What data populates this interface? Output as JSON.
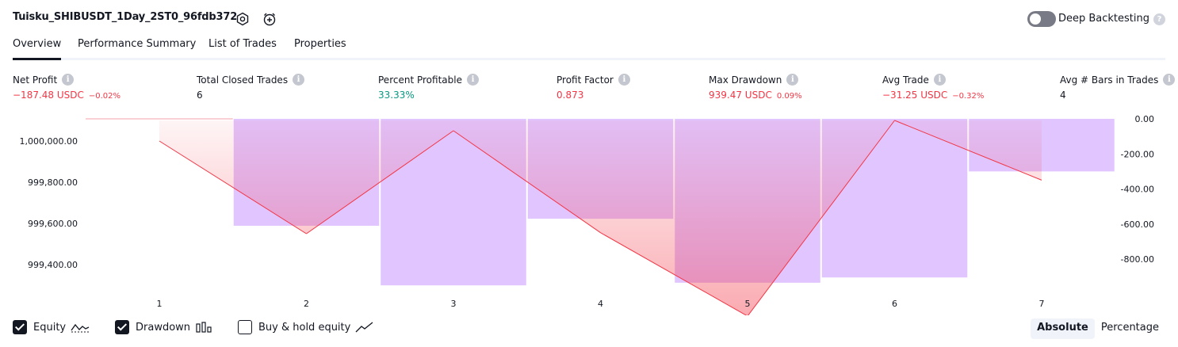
{
  "header": {
    "strategy_title": "Tuisku_SHIBUSDT_1Day_2ST0_96fdb372",
    "deep_backtesting_label": "Deep Backtesting",
    "deep_backtesting_enabled": false,
    "icons": [
      "settings-icon",
      "add-alert-icon",
      "help-icon"
    ]
  },
  "tabs": [
    {
      "label": "Overview",
      "active": true
    },
    {
      "label": "Performance Summary",
      "active": false
    },
    {
      "label": "List of Trades",
      "active": false
    },
    {
      "label": "Properties",
      "active": false
    }
  ],
  "metrics": [
    {
      "label": "Net Profit",
      "value": "−187.48 USDC",
      "pct": "−0.02%",
      "color": "red"
    },
    {
      "label": "Total Closed Trades",
      "value": "6",
      "pct": "",
      "color": "dark"
    },
    {
      "label": "Percent Profitable",
      "value": "33.33%",
      "pct": "",
      "color": "green"
    },
    {
      "label": "Profit Factor",
      "value": "0.873",
      "pct": "",
      "color": "red"
    },
    {
      "label": "Max Drawdown",
      "value": "939.47 USDC",
      "pct": "0.09%",
      "color": "red"
    },
    {
      "label": "Avg Trade",
      "value": "−31.25 USDC",
      "pct": "−0.32%",
      "color": "red"
    },
    {
      "label": "Avg # Bars in Trades",
      "value": "4",
      "pct": "",
      "color": "dark"
    }
  ],
  "chart_data": {
    "type": "line",
    "x": [
      1,
      2,
      3,
      4,
      5,
      6,
      7
    ],
    "x_tick_labels": [
      "1",
      "2",
      "3",
      "4",
      "5",
      "6",
      "7"
    ],
    "left_axis": {
      "ticks": [
        "1,000,000.00",
        "999,800.00",
        "999,600.00",
        "999,400.00"
      ],
      "tick_values": [
        1000000,
        999800,
        999600,
        999400
      ]
    },
    "right_axis": {
      "ticks": [
        "0.00",
        "-200.00",
        "-400.00",
        "-600.00",
        "-800.00"
      ],
      "tick_values": [
        0,
        -200,
        -400,
        -600,
        -800
      ]
    },
    "series": [
      {
        "name": "Equity",
        "type": "line",
        "values": [
          1000000,
          999550,
          1000050,
          999555,
          999150,
          1000100,
          999810
        ],
        "colors": {
          "loss": "#f23645",
          "gain": "#22ab94"
        }
      },
      {
        "name": "Drawdown",
        "type": "bar",
        "values": [
          0,
          -610,
          -950,
          -570,
          -935,
          -905,
          -300
        ],
        "color": "#e1c5fe"
      }
    ],
    "initial_equity": 1000100
  },
  "legend": [
    {
      "label": "Equity",
      "checked": true
    },
    {
      "label": "Drawdown",
      "checked": true
    },
    {
      "label": "Buy & hold equity",
      "checked": false
    }
  ],
  "modes": [
    {
      "label": "Absolute",
      "active": true
    },
    {
      "label": "Percentage",
      "active": false
    }
  ]
}
